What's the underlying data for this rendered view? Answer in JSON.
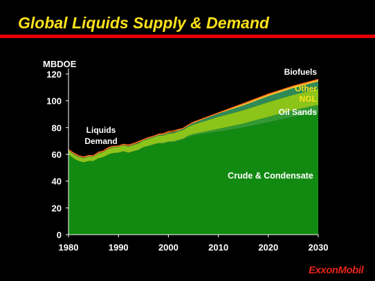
{
  "slide": {
    "title": "Global Liquids Supply & Demand",
    "title_color": "#ffe21a",
    "rule_color": "#e60000"
  },
  "logo": {
    "text": "ExxonMobil",
    "color": "#e2231a"
  },
  "chart_data": {
    "type": "area",
    "stacked": true,
    "ylabel": "MBDOE",
    "xlim": [
      1980,
      2030
    ],
    "ylim": [
      0,
      120
    ],
    "x_ticks": [
      1980,
      1990,
      2000,
      2010,
      2020,
      2030
    ],
    "y_ticks": [
      0,
      20,
      40,
      60,
      80,
      100,
      120
    ],
    "grid": false,
    "x": [
      1980,
      1981,
      1982,
      1983,
      1984,
      1985,
      1986,
      1987,
      1988,
      1989,
      1990,
      1991,
      1992,
      1993,
      1994,
      1995,
      1996,
      1997,
      1998,
      1999,
      2000,
      2001,
      2002,
      2003,
      2004,
      2005,
      2010,
      2015,
      2020,
      2025,
      2030
    ],
    "series": [
      {
        "name": "Crude & Condensate",
        "color": "#128a12",
        "values": [
          60,
          57,
          55,
          54,
          55,
          55,
          57,
          58,
          60,
          61,
          61,
          62,
          61,
          62,
          63,
          65,
          66,
          67,
          68,
          68,
          69,
          69,
          70,
          71,
          73,
          74,
          77,
          80,
          84,
          88,
          91
        ]
      },
      {
        "name": "Oil Sands",
        "color": "#339933",
        "values": [
          0,
          0,
          0,
          0,
          0,
          0,
          0,
          0,
          0,
          0,
          0.3,
          0.3,
          0.3,
          0.3,
          0.4,
          0.4,
          0.4,
          0.5,
          0.5,
          0.5,
          0.6,
          0.7,
          0.8,
          0.9,
          1.0,
          1.2,
          2,
          3,
          4,
          5,
          6
        ]
      },
      {
        "name": "NGL",
        "color": "#8cc41a",
        "values": [
          3,
          3,
          3,
          3,
          3.2,
          3.3,
          3.5,
          3.8,
          4,
          4.2,
          4.3,
          4.4,
          4.5,
          4.6,
          4.7,
          4.8,
          5,
          5.2,
          5.4,
          5.6,
          5.8,
          6,
          6.2,
          6.4,
          6.7,
          7,
          9,
          10,
          11,
          11.5,
          12
        ]
      },
      {
        "name": "Other",
        "color": "#2e8b57",
        "values": [
          0.3,
          0.3,
          0.3,
          0.3,
          0.3,
          0.3,
          0.3,
          0.3,
          0.4,
          0.4,
          0.4,
          0.4,
          0.4,
          0.4,
          0.5,
          0.5,
          0.5,
          0.5,
          0.6,
          0.6,
          0.6,
          0.7,
          0.8,
          0.9,
          1.0,
          1.2,
          2.5,
          3.5,
          4.5,
          5,
          5.5
        ]
      },
      {
        "name": "Biofuels",
        "color": "#ffcc33",
        "values": [
          0.2,
          0.2,
          0.2,
          0.2,
          0.2,
          0.2,
          0.2,
          0.2,
          0.2,
          0.2,
          0.2,
          0.2,
          0.2,
          0.2,
          0.2,
          0.2,
          0.2,
          0.2,
          0.2,
          0.3,
          0.3,
          0.3,
          0.3,
          0.3,
          0.4,
          0.4,
          0.8,
          1.0,
          1.2,
          1.4,
          1.6
        ]
      }
    ],
    "demand_line": {
      "color": "#ff6a1a",
      "values": [
        63.5,
        61,
        59,
        58,
        59,
        59,
        61.5,
        62.5,
        65,
        66,
        66.2,
        67.5,
        67,
        68,
        69.5,
        71,
        72.5,
        73.5,
        75,
        75.5,
        77,
        77.5,
        78.5,
        79.5,
        82,
        84,
        91,
        98,
        105,
        111,
        116
      ]
    },
    "annotations": [
      {
        "id": "liquids-demand-line1",
        "text": "Liquids"
      },
      {
        "id": "liquids-demand-line2",
        "text": "Demand"
      },
      {
        "id": "crude",
        "text": "Crude & Condensate"
      },
      {
        "id": "oil-sands",
        "text": "Oil Sands"
      },
      {
        "id": "ngl",
        "text": "NGL"
      },
      {
        "id": "other",
        "text": "Other"
      },
      {
        "id": "biofuels",
        "text": "Biofuels"
      }
    ]
  }
}
